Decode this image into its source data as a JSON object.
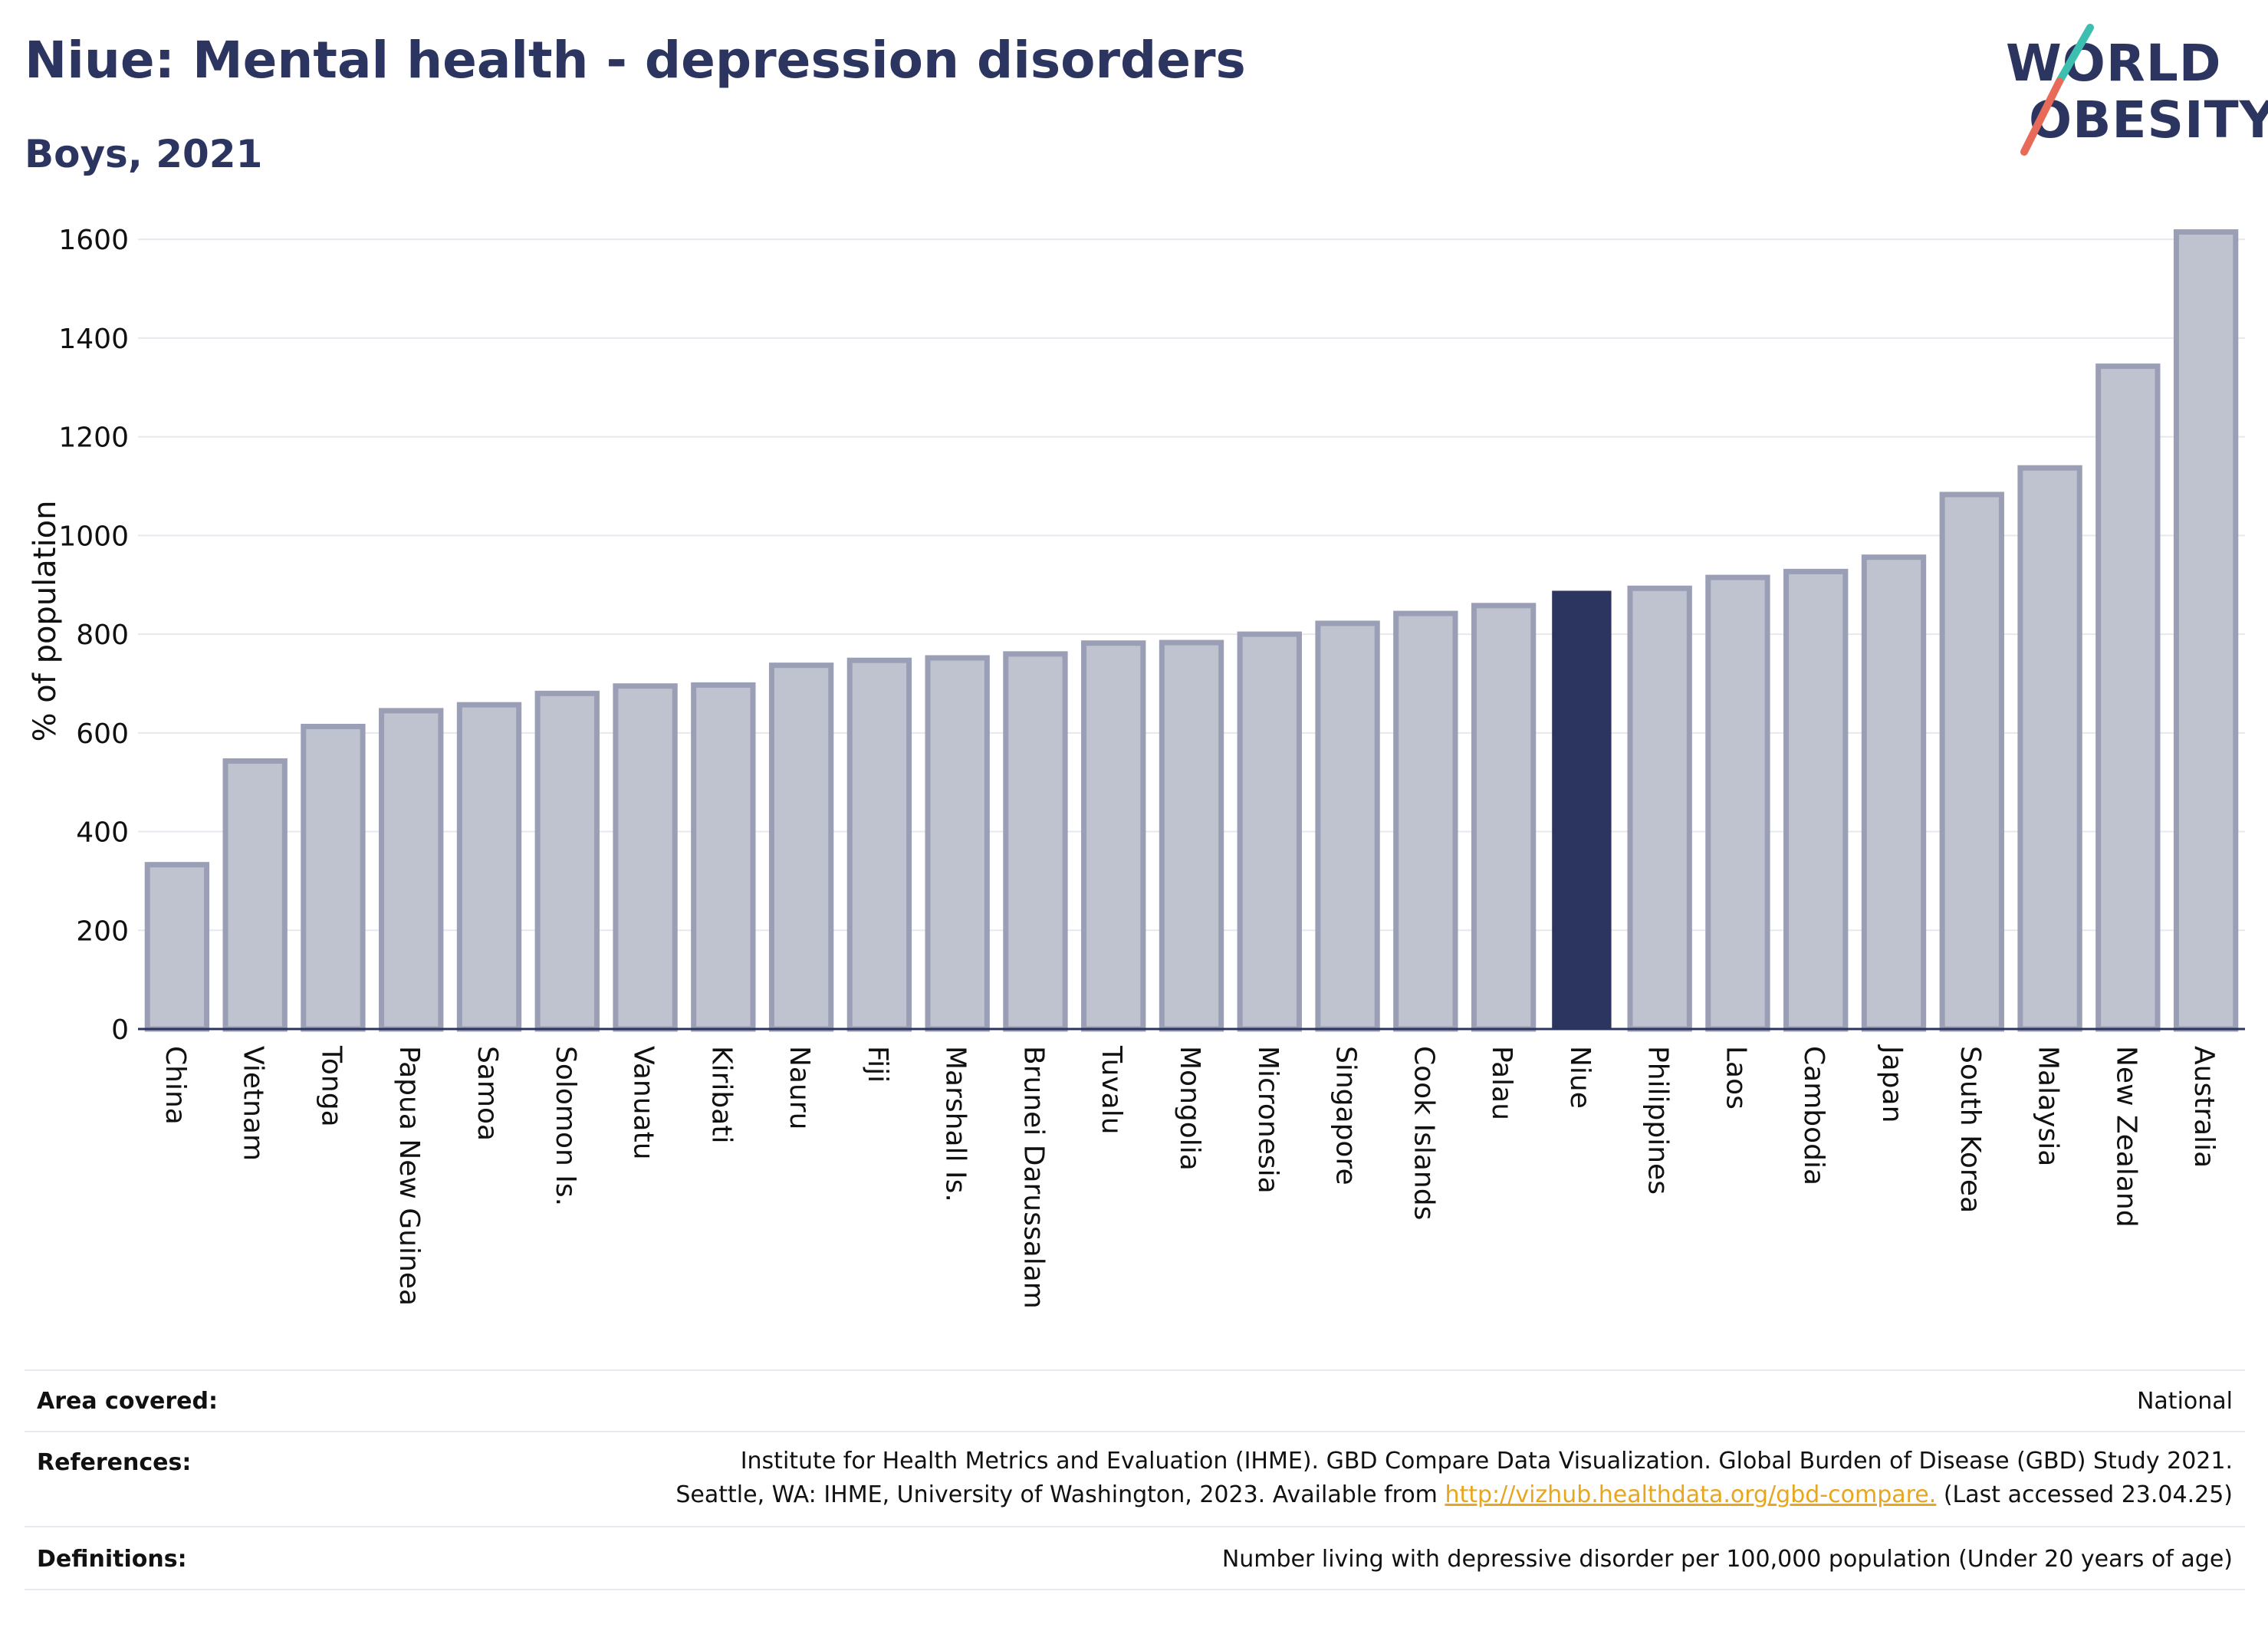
{
  "header": {
    "title": "Niue: Mental health - depression disorders",
    "subtitle": "Boys, 2021"
  },
  "logo": {
    "line1": "WORLD",
    "line2": "OBESITY",
    "colors": {
      "teal": "#3dbfb0",
      "coral": "#e86b5a",
      "navy": "#2b3560"
    }
  },
  "colors": {
    "highlight_bar": "#2b3560",
    "other_bar_fill": "#bfc2cf",
    "other_bar_stroke": "#9a9fb5",
    "grid": "#e6e8ef",
    "axis": "#2b3560"
  },
  "chart_data": {
    "type": "bar",
    "title": "Niue: Mental health - depression disorders",
    "subtitle": "Boys, 2021",
    "ylabel": "% of population",
    "xlabel": "",
    "ylim": [
      0,
      1650
    ],
    "yticks": [
      0,
      200,
      400,
      600,
      800,
      1000,
      1200,
      1400,
      1600
    ],
    "grid": true,
    "highlight": "Niue",
    "categories": [
      "China",
      "Vietnam",
      "Tonga",
      "Papua New Guinea",
      "Samoa",
      "Solomon Is.",
      "Vanuatu",
      "Kiribati",
      "Nauru",
      "Fiji",
      "Marshall Is.",
      "Brunei Darussalam",
      "Tuvalu",
      "Mongolia",
      "Micronesia",
      "Singapore",
      "Cook Islands",
      "Palau",
      "Niue",
      "Philippines",
      "Laos",
      "Cambodia",
      "Japan",
      "South Korea",
      "Malaysia",
      "New Zealand",
      "Australia"
    ],
    "values": [
      333,
      543,
      613,
      645,
      657,
      680,
      695,
      697,
      737,
      747,
      752,
      760,
      782,
      783,
      800,
      822,
      842,
      858,
      888,
      893,
      915,
      927,
      956,
      1083,
      1137,
      1343,
      1615
    ]
  },
  "info": {
    "area_label": "Area covered:",
    "area_value": "National",
    "references_label": "References:",
    "references_line1": "Institute for Health Metrics and Evaluation (IHME). GBD Compare Data Visualization. Global Burden of Disease (GBD) Study 2021.",
    "references_line2_prefix": "Seattle, WA: IHME, University of Washington, 2023. Available from ",
    "references_link": "http://vizhub.healthdata.org/gbd-compare.",
    "references_line2_suffix": " (Last accessed 23.04.25)",
    "definitions_label": "Definitions:",
    "definitions_value": "Number living with depressive disorder per 100,000 population (Under 20 years of age)"
  }
}
